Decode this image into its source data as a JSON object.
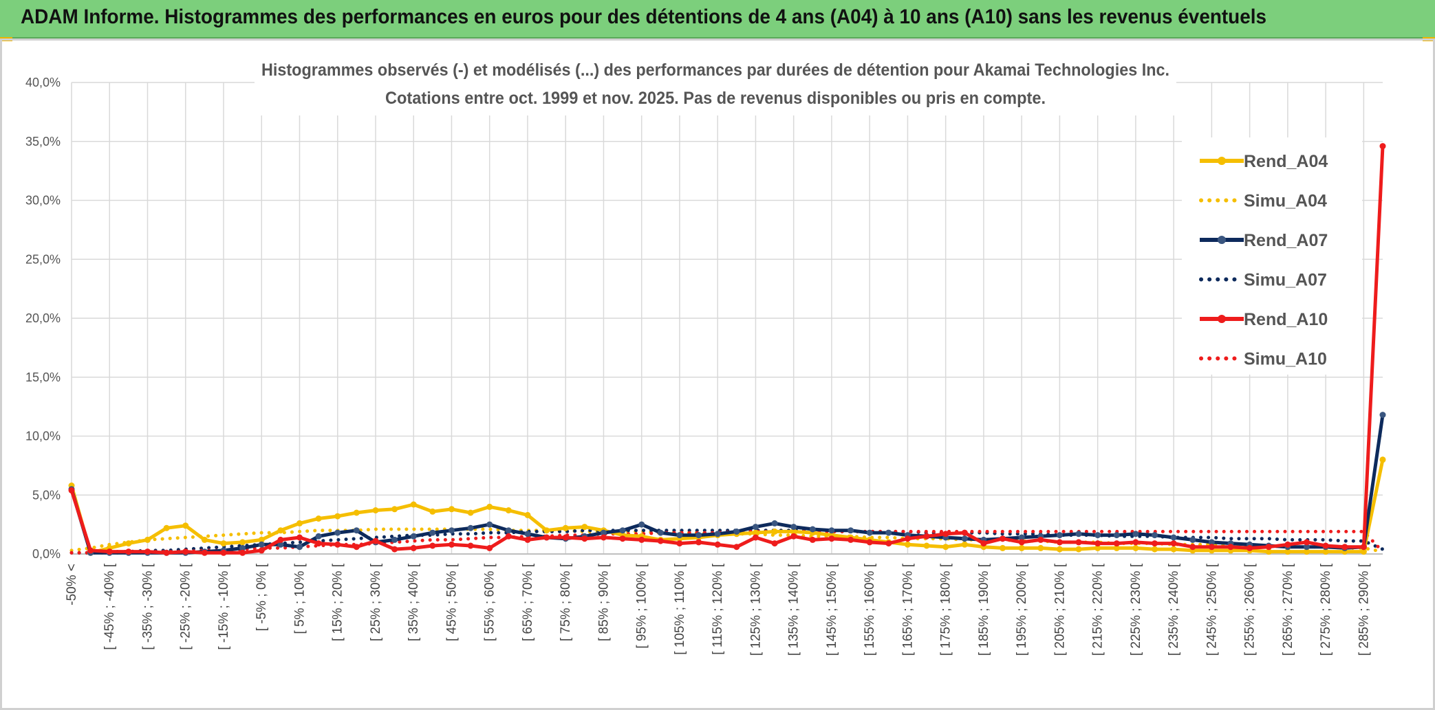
{
  "header": {
    "title": "ADAM Informe. Histogrammes des performances en euros pour des détentions de 4 ans (A04) à 10 ans (A10) sans les revenus éventuels"
  },
  "chart_data": {
    "type": "line",
    "title": "Histogrammes observés (-) et modélisés (...) des performances par durées de détention pour Akamai Technologies Inc.",
    "subtitle": "Cotations entre oct. 1999 et nov. 2025. Pas de revenus disponibles ou pris en compte.",
    "xlabel": "",
    "ylabel": "",
    "ylim": [
      0,
      40
    ],
    "y_ticks": [
      "0,0%",
      "5,0%",
      "10,0%",
      "15,0%",
      "20,0%",
      "25,0%",
      "30,0%",
      "35,0%",
      "40,0%"
    ],
    "x_tick_labels": [
      "-50% <",
      "[ -45% ; -40% [",
      "[ -35% ; -30% [",
      "[ -25% ; -20% [",
      "[ -15% ; -10% [",
      "[ -5% ; 0% [",
      "[ 5% ; 10% [",
      "[ 15% ; 20% [",
      "[ 25% ; 30% [",
      "[ 35% ; 40% [",
      "[ 45% ; 50% [",
      "[ 55% ; 60% [",
      "[ 65% ; 70% [",
      "[ 75% ; 80% [",
      "[ 85% ; 90% [",
      "[ 95% ; 100% [",
      "[ 105% ; 110% [",
      "[ 115% ; 120% [",
      "[ 125% ; 130% [",
      "[ 135% ; 140% [",
      "[ 145% ; 150% [",
      "[ 155% ; 160% [",
      "[ 165% ; 170% [",
      "[ 175% ; 180% [",
      "[ 185% ; 190% [",
      "[ 195% ; 200% [",
      "[ 205% ; 210% [",
      "[ 215% ; 220% [",
      "[ 225% ; 230% [",
      "[ 235% ; 240% [",
      "[ 245% ; 250% [",
      "[ 255% ; 260% [",
      "[ 265% ; 270% [",
      "[ 275% ; 280% [",
      "[ 285% ; 290% ["
    ],
    "n_points": 70,
    "legend_position": "right",
    "series": [
      {
        "name": "Rend_A04",
        "style": "solid",
        "color": "#f5be00",
        "values": [
          5.8,
          0.1,
          0.5,
          0.9,
          1.2,
          2.2,
          2.4,
          1.2,
          0.9,
          1.0,
          1.2,
          2.0,
          2.6,
          3.0,
          3.2,
          3.5,
          3.7,
          3.8,
          4.2,
          3.6,
          3.8,
          3.5,
          4.0,
          3.7,
          3.3,
          2.0,
          2.2,
          2.3,
          2.0,
          1.6,
          1.5,
          1.2,
          1.3,
          1.4,
          1.6,
          1.7,
          1.8,
          1.9,
          1.9,
          1.8,
          1.6,
          1.4,
          1.2,
          1.0,
          0.8,
          0.7,
          0.6,
          0.8,
          0.6,
          0.5,
          0.5,
          0.5,
          0.4,
          0.4,
          0.5,
          0.5,
          0.5,
          0.4,
          0.4,
          0.3,
          0.3,
          0.3,
          0.3,
          0.2,
          0.2,
          0.2,
          0.2,
          0.2,
          0.2,
          8.0
        ]
      },
      {
        "name": "Simu_A04",
        "style": "dotted",
        "color": "#f5be00",
        "values": [
          0.3,
          0.5,
          0.8,
          1.0,
          1.2,
          1.3,
          1.4,
          1.5,
          1.6,
          1.7,
          1.8,
          1.8,
          1.9,
          2.0,
          2.0,
          2.0,
          2.1,
          2.1,
          2.1,
          2.1,
          2.1,
          2.1,
          2.1,
          2.0,
          2.0,
          2.0,
          2.0,
          1.9,
          1.9,
          1.9,
          1.9,
          1.8,
          1.8,
          1.8,
          1.7,
          1.7,
          1.7,
          1.6,
          1.6,
          1.5,
          1.5,
          1.5,
          1.4,
          1.4,
          1.3,
          1.3,
          1.3,
          1.2,
          1.2,
          1.2,
          1.1,
          1.1,
          1.0,
          1.0,
          1.0,
          0.9,
          0.9,
          0.9,
          0.8,
          0.8,
          0.8,
          0.7,
          0.7,
          0.7,
          0.6,
          0.6,
          0.6,
          0.5,
          0.5,
          0.2
        ]
      },
      {
        "name": "Rend_A07",
        "style": "solid",
        "color": "#0d2a5c",
        "values": [
          5.5,
          0.1,
          0.1,
          0.1,
          0.1,
          0.1,
          0.1,
          0.2,
          0.3,
          0.5,
          0.8,
          0.8,
          0.6,
          1.5,
          1.8,
          2.0,
          1.0,
          1.2,
          1.5,
          1.8,
          2.0,
          2.2,
          2.5,
          2.0,
          1.7,
          1.4,
          1.3,
          1.5,
          1.8,
          2.0,
          2.5,
          1.8,
          1.6,
          1.6,
          1.7,
          1.9,
          2.3,
          2.6,
          2.3,
          2.1,
          2.0,
          2.0,
          1.8,
          1.8,
          1.6,
          1.5,
          1.4,
          1.3,
          1.2,
          1.3,
          1.4,
          1.5,
          1.6,
          1.7,
          1.6,
          1.6,
          1.7,
          1.6,
          1.4,
          1.2,
          1.0,
          0.9,
          0.8,
          0.7,
          0.6,
          0.6,
          0.6,
          0.5,
          0.6,
          11.8
        ]
      },
      {
        "name": "Simu_A07",
        "style": "dotted",
        "color": "#0d2a5c",
        "values": [
          0.1,
          0.1,
          0.2,
          0.2,
          0.3,
          0.3,
          0.4,
          0.5,
          0.6,
          0.7,
          0.8,
          0.9,
          1.0,
          1.1,
          1.2,
          1.3,
          1.4,
          1.5,
          1.6,
          1.6,
          1.7,
          1.7,
          1.8,
          1.8,
          1.9,
          1.9,
          1.9,
          2.0,
          2.0,
          2.0,
          2.0,
          2.0,
          2.0,
          2.0,
          2.0,
          2.0,
          2.0,
          2.0,
          2.0,
          2.0,
          1.9,
          1.9,
          1.9,
          1.9,
          1.9,
          1.8,
          1.8,
          1.8,
          1.8,
          1.7,
          1.7,
          1.7,
          1.6,
          1.6,
          1.6,
          1.5,
          1.5,
          1.5,
          1.4,
          1.4,
          1.4,
          1.3,
          1.3,
          1.3,
          1.2,
          1.2,
          1.2,
          1.1,
          1.1,
          0.4
        ]
      },
      {
        "name": "Rend_A10",
        "style": "solid",
        "color": "#ee1c1c",
        "values": [
          5.4,
          0.3,
          0.2,
          0.2,
          0.2,
          0.1,
          0.2,
          0.1,
          0.1,
          0.1,
          0.3,
          1.2,
          1.4,
          0.9,
          0.8,
          0.6,
          1.1,
          0.4,
          0.5,
          0.7,
          0.8,
          0.7,
          0.5,
          1.5,
          1.2,
          1.4,
          1.4,
          1.3,
          1.4,
          1.3,
          1.2,
          1.1,
          0.9,
          1.0,
          0.8,
          0.6,
          1.4,
          0.9,
          1.5,
          1.2,
          1.3,
          1.2,
          1.0,
          0.9,
          1.3,
          1.5,
          1.7,
          1.8,
          0.9,
          1.3,
          1.0,
          1.2,
          1.0,
          1.0,
          0.9,
          0.9,
          1.0,
          0.9,
          0.9,
          0.6,
          0.6,
          0.6,
          0.5,
          0.6,
          0.8,
          1.0,
          0.7,
          0.6,
          0.6,
          34.6
        ]
      },
      {
        "name": "Simu_A10",
        "style": "dotted",
        "color": "#ee1c1c",
        "values": [
          0.1,
          0.1,
          0.1,
          0.1,
          0.2,
          0.2,
          0.2,
          0.3,
          0.3,
          0.4,
          0.5,
          0.5,
          0.6,
          0.7,
          0.8,
          0.8,
          0.9,
          1.0,
          1.1,
          1.2,
          1.2,
          1.3,
          1.4,
          1.4,
          1.5,
          1.5,
          1.6,
          1.6,
          1.7,
          1.7,
          1.7,
          1.8,
          1.8,
          1.8,
          1.8,
          1.9,
          1.9,
          1.9,
          1.9,
          1.9,
          1.9,
          1.9,
          1.9,
          1.9,
          1.9,
          1.9,
          1.9,
          1.9,
          1.9,
          1.9,
          1.9,
          1.9,
          1.9,
          1.9,
          1.9,
          1.9,
          1.9,
          1.9,
          1.9,
          1.9,
          1.9,
          1.9,
          1.9,
          1.9,
          1.9,
          1.9,
          1.9,
          1.9,
          1.9,
          0.2
        ]
      }
    ]
  }
}
